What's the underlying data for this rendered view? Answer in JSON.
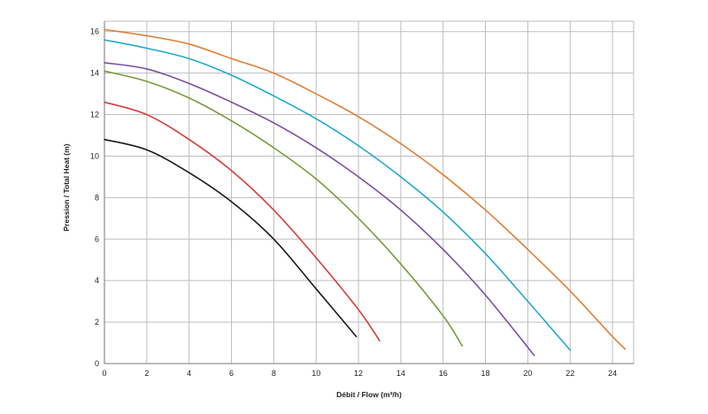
{
  "chart_data": {
    "type": "line",
    "title": "",
    "xlabel": "Débit / Flow (m³/h)",
    "ylabel": "Pression / Total Heat (m)",
    "xlim": [
      0,
      25
    ],
    "ylim": [
      0,
      16.5
    ],
    "x_ticks": [
      "0",
      "2",
      "4",
      "6",
      "8",
      "10",
      "12",
      "14",
      "16",
      "18",
      "20",
      "22",
      "24"
    ],
    "y_ticks": [
      "0",
      "2",
      "4",
      "6",
      "8",
      "10",
      "12",
      "14",
      "16"
    ],
    "grid": true,
    "legend": "none",
    "series": [
      {
        "color": "#1a1a1a",
        "points": [
          [
            0,
            10.8
          ],
          [
            2,
            10.3
          ],
          [
            4,
            9.2
          ],
          [
            6,
            7.8
          ],
          [
            8,
            6.0
          ],
          [
            10,
            3.6
          ],
          [
            11.9,
            1.3
          ]
        ]
      },
      {
        "color": "#d63c3c",
        "points": [
          [
            0,
            12.6
          ],
          [
            2,
            12.0
          ],
          [
            4,
            10.8
          ],
          [
            6,
            9.3
          ],
          [
            8,
            7.4
          ],
          [
            10,
            5.1
          ],
          [
            12,
            2.6
          ],
          [
            13,
            1.1
          ]
        ]
      },
      {
        "color": "#7b9a3b",
        "points": [
          [
            0,
            14.1
          ],
          [
            2,
            13.6
          ],
          [
            4,
            12.8
          ],
          [
            6,
            11.7
          ],
          [
            8,
            10.4
          ],
          [
            10,
            8.9
          ],
          [
            12,
            7.0
          ],
          [
            14,
            4.8
          ],
          [
            16,
            2.3
          ],
          [
            16.9,
            0.85
          ]
        ]
      },
      {
        "color": "#7b4fa0",
        "points": [
          [
            0,
            14.5
          ],
          [
            2,
            14.2
          ],
          [
            4,
            13.5
          ],
          [
            6,
            12.6
          ],
          [
            8,
            11.6
          ],
          [
            10,
            10.4
          ],
          [
            12,
            9.0
          ],
          [
            14,
            7.4
          ],
          [
            16,
            5.5
          ],
          [
            18,
            3.3
          ],
          [
            20.3,
            0.4
          ]
        ]
      },
      {
        "color": "#20a9cc",
        "points": [
          [
            0,
            15.6
          ],
          [
            2,
            15.2
          ],
          [
            4,
            14.7
          ],
          [
            6,
            13.9
          ],
          [
            8,
            12.9
          ],
          [
            10,
            11.8
          ],
          [
            12,
            10.5
          ],
          [
            14,
            9.0
          ],
          [
            16,
            7.3
          ],
          [
            18,
            5.3
          ],
          [
            20,
            3.0
          ],
          [
            22,
            0.65
          ]
        ]
      },
      {
        "color": "#e07f35",
        "points": [
          [
            0,
            16.1
          ],
          [
            2,
            15.8
          ],
          [
            4,
            15.4
          ],
          [
            6,
            14.7
          ],
          [
            8,
            14.0
          ],
          [
            10,
            13.0
          ],
          [
            12,
            11.9
          ],
          [
            14,
            10.6
          ],
          [
            16,
            9.1
          ],
          [
            18,
            7.4
          ],
          [
            20,
            5.5
          ],
          [
            22,
            3.5
          ],
          [
            24,
            1.3
          ],
          [
            24.6,
            0.7
          ]
        ]
      }
    ]
  }
}
